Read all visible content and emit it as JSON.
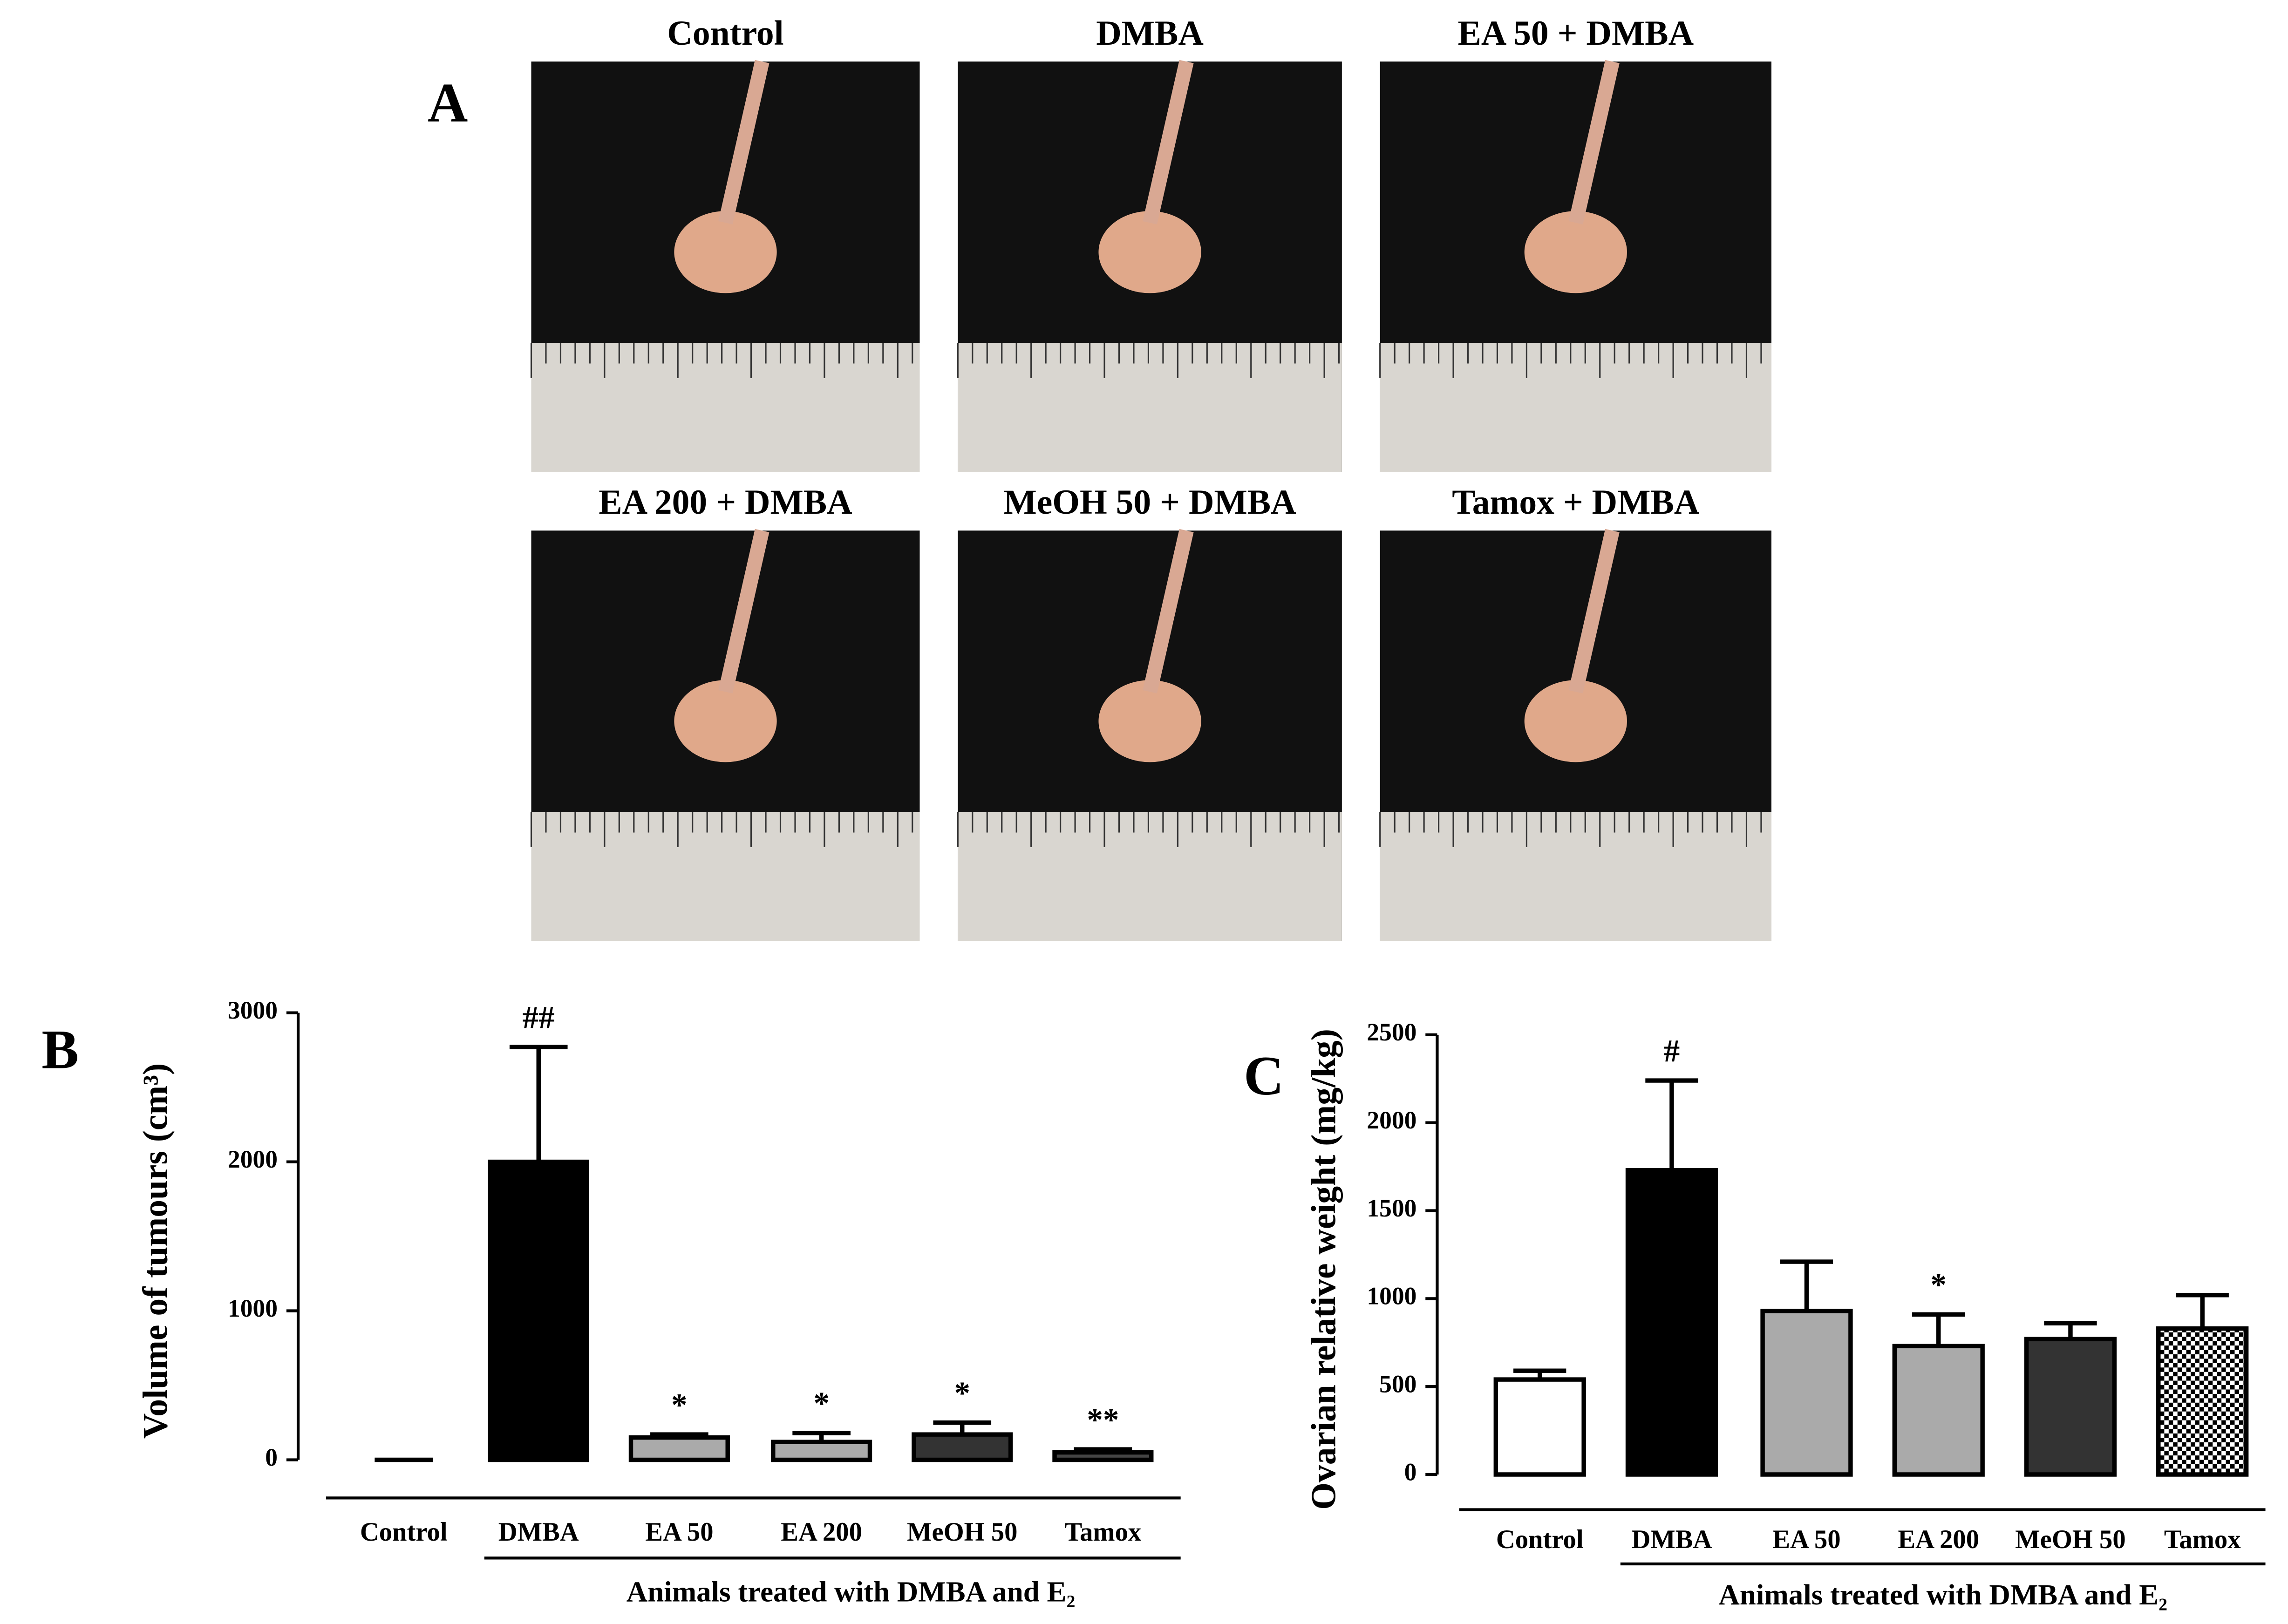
{
  "panel_a": {
    "letter": "A",
    "photos": [
      "Control",
      "DMBA",
      "EA  50 + DMBA",
      "EA 200 + DMBA",
      "MeOH 50 + DMBA",
      "Tamox  + DMBA"
    ]
  },
  "chart_data": [
    {
      "type": "bar",
      "letter": "B",
      "ylabel": "Volume of tumours (cm³)",
      "group_label": "Animals treated with DMBA and E₂",
      "categories": [
        "Control",
        "DMBA",
        "EA 50",
        "EA 200",
        "MeOH 50",
        "Tamox"
      ],
      "values": [
        0,
        2000,
        150,
        120,
        170,
        50
      ],
      "errors": [
        0,
        770,
        20,
        60,
        80,
        20
      ],
      "annotations": [
        null,
        "##",
        "*",
        "*",
        "*",
        "**"
      ],
      "fills": [
        "#ffffff",
        "#000000",
        "#aaaaaa",
        "#aaaaaa",
        "#333333",
        "#444444"
      ],
      "ylim": [
        0,
        3000
      ],
      "yticks": [
        0,
        1000,
        2000,
        3000
      ]
    },
    {
      "type": "bar",
      "letter": "C",
      "ylabel": "Ovarian relative weight (mg/kg)",
      "group_label": "Animals treated with DMBA and E₂",
      "categories": [
        "Control",
        "DMBA",
        "EA 50",
        "EA 200",
        "MeOH 50",
        "Tamox"
      ],
      "values": [
        540,
        1730,
        930,
        730,
        770,
        830
      ],
      "errors": [
        50,
        510,
        280,
        180,
        90,
        190
      ],
      "annotations": [
        null,
        "#",
        null,
        "*",
        null,
        null
      ],
      "fills": [
        "#ffffff",
        "#000000",
        "#aaaaaa",
        "#aaaaaa",
        "#333333",
        "checkered"
      ],
      "ylim": [
        0,
        2500
      ],
      "yticks": [
        0,
        500,
        1000,
        1500,
        2000,
        2500
      ]
    }
  ]
}
